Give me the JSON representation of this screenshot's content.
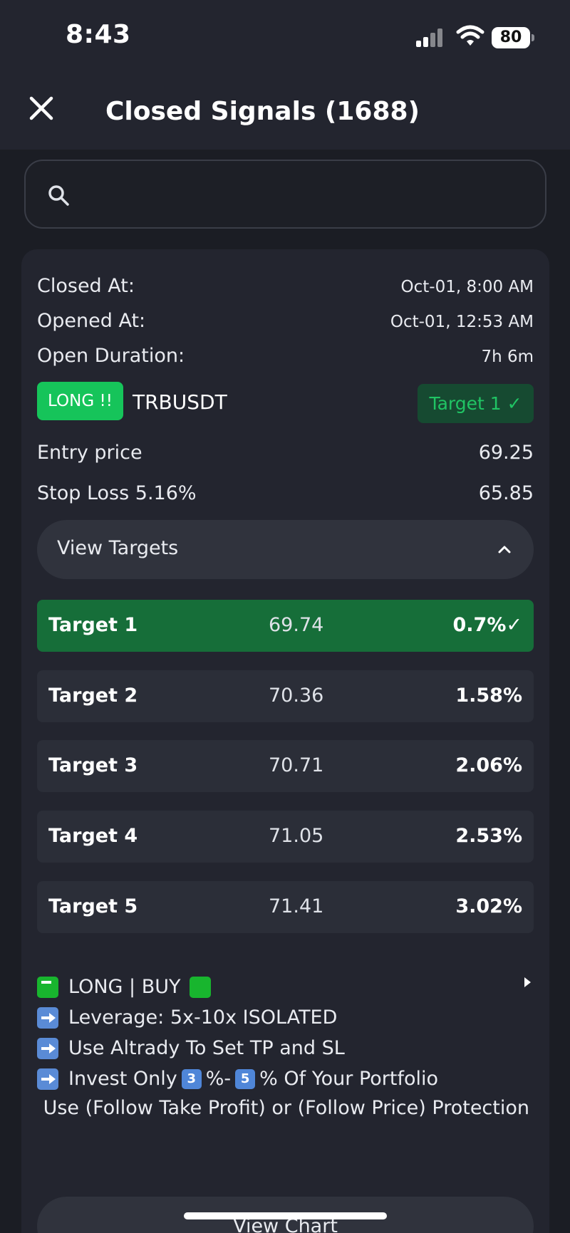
{
  "status_bar": {
    "time": "8:43",
    "battery": "80"
  },
  "header": {
    "title": "Closed Signals (1688)"
  },
  "search": {
    "placeholder": ""
  },
  "signal": {
    "closed_at_label": "Closed At:",
    "closed_at": "Oct-01, 8:00 AM",
    "opened_at_label": "Opened At:",
    "opened_at": "Oct-01, 12:53 AM",
    "duration_label": "Open Duration:",
    "duration": "7h 6m",
    "direction": "LONG !!",
    "pair": "TRBUSDT",
    "status": "Target 1 ✓",
    "entry_label": "Entry price",
    "entry": "69.25",
    "stop_label": "Stop Loss 5.16%",
    "stop": "65.85",
    "view_targets_label": "View Targets",
    "targets": [
      {
        "name": "Target 1",
        "price": "69.74",
        "pct": "0.7%✓"
      },
      {
        "name": "Target 2",
        "price": "70.36",
        "pct": "1.58%"
      },
      {
        "name": "Target 3",
        "price": "70.71",
        "pct": "2.06%"
      },
      {
        "name": "Target 4",
        "price": "71.05",
        "pct": "2.53%"
      },
      {
        "name": "Target 5",
        "price": "71.41",
        "pct": "3.02%"
      }
    ],
    "notes": {
      "line1": "LONG | BUY",
      "line2": "Leverage: 5x-10x ISOLATED",
      "line3": "Use Altrady To Set TP and SL",
      "line4_a": "Invest Only",
      "line4_b": "%-",
      "line4_c": "% Of Your Portfolio",
      "key3": "3",
      "key5": "5",
      "line5": "Use (Follow Take Profit) or (Follow Price) Protection"
    },
    "view_chart_label": "View Chart"
  }
}
